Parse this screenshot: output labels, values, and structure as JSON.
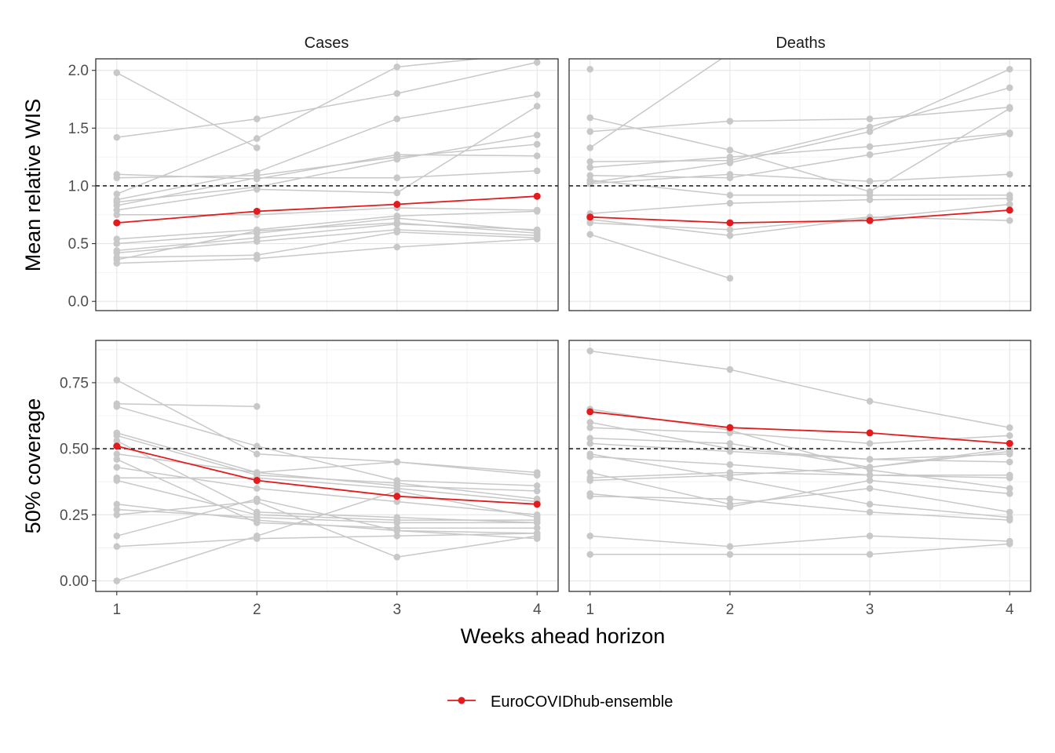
{
  "chart_data": {
    "type": "line",
    "x_label": "Weeks ahead horizon",
    "x_ticks": [
      1,
      2,
      3,
      4
    ],
    "facet_columns": [
      "Cases",
      "Deaths"
    ],
    "rows": [
      {
        "y_label": "Mean relative WIS",
        "ylim": [
          -0.08,
          2.1
        ],
        "y_ticks": [
          "0.0",
          "0.5",
          "1.0",
          "1.5",
          "2.0"
        ],
        "y_tick_values": [
          0,
          0.5,
          1.0,
          1.5,
          2.0
        ],
        "reference_line": 1.0
      },
      {
        "y_label": "50% coverage",
        "ylim": [
          -0.04,
          0.91
        ],
        "y_ticks": [
          "0.00",
          "0.25",
          "0.50",
          "0.75"
        ],
        "y_tick_values": [
          0,
          0.25,
          0.5,
          0.75
        ],
        "reference_line": 0.5
      }
    ],
    "highlight": {
      "name": "EuroCOVIDhub-ensemble",
      "color": "#E41A1C",
      "panels": {
        "wis_cases": [
          0.68,
          0.78,
          0.84,
          0.91
        ],
        "wis_deaths": [
          0.73,
          0.68,
          0.7,
          0.79
        ],
        "cov_cases": [
          0.51,
          0.38,
          0.32,
          0.29
        ],
        "cov_deaths": [
          0.64,
          0.58,
          0.56,
          0.52
        ]
      }
    },
    "other_models_color": "#C8C8C8",
    "other_models": {
      "wis_cases": [
        [
          1.98,
          1.33,
          null,
          null
        ],
        [
          1.42,
          1.58,
          1.8,
          2.07
        ],
        [
          1.1,
          1.06,
          1.27,
          1.26
        ],
        [
          1.07,
          1.09,
          1.25,
          1.36
        ],
        [
          0.93,
          1.41,
          2.03,
          2.15
        ],
        [
          0.88,
          1.12,
          1.58,
          1.79
        ],
        [
          0.86,
          0.99,
          1.23,
          1.44
        ],
        [
          0.83,
          1.07,
          1.07,
          1.13
        ],
        [
          0.79,
          0.97,
          0.94,
          1.69
        ],
        [
          0.75,
          0.75,
          0.81,
          0.79
        ],
        [
          0.54,
          0.62,
          0.74,
          0.78
        ],
        [
          0.5,
          0.59,
          0.72,
          0.61
        ],
        [
          0.44,
          0.55,
          0.67,
          0.62
        ],
        [
          0.42,
          0.52,
          0.62,
          0.57
        ],
        [
          0.38,
          0.4,
          0.6,
          0.55
        ],
        [
          0.36,
          0.61,
          0.68,
          0.59
        ],
        [
          0.33,
          0.37,
          0.47,
          0.54
        ]
      ],
      "wis_deaths": [
        [
          2.01,
          null,
          null,
          null
        ],
        [
          1.33,
          2.15,
          null,
          null
        ],
        [
          1.59,
          1.31,
          0.95,
          1.67
        ],
        [
          1.47,
          1.56,
          1.58,
          1.68
        ],
        [
          1.21,
          1.22,
          1.51,
          1.85
        ],
        [
          1.16,
          1.25,
          1.34,
          1.46
        ],
        [
          1.09,
          1.07,
          1.27,
          1.45
        ],
        [
          1.05,
          0.92,
          0.92,
          0.92
        ],
        [
          1.03,
          1.2,
          1.47,
          2.01
        ],
        [
          1.02,
          1.1,
          1.04,
          1.1
        ],
        [
          0.76,
          0.85,
          0.88,
          0.89
        ],
        [
          0.71,
          0.57,
          0.72,
          0.84
        ],
        [
          0.68,
          0.62,
          0.73,
          0.7
        ],
        [
          0.58,
          0.2,
          null,
          null
        ]
      ],
      "cov_cases": [
        [
          0.76,
          0.48,
          0.45,
          0.4
        ],
        [
          0.67,
          0.66,
          null,
          null
        ],
        [
          0.66,
          0.51,
          0.38,
          0.36
        ],
        [
          0.56,
          0.41,
          0.36,
          0.34
        ],
        [
          0.55,
          0.4,
          0.37,
          0.31
        ],
        [
          0.53,
          0.26,
          0.24,
          0.22
        ],
        [
          0.48,
          0.41,
          0.45,
          0.41
        ],
        [
          0.46,
          0.22,
          0.2,
          0.2
        ],
        [
          0.43,
          0.35,
          0.3,
          0.25
        ],
        [
          0.39,
          0.39,
          0.35,
          0.3
        ],
        [
          0.38,
          0.25,
          0.23,
          0.23
        ],
        [
          0.29,
          0.23,
          0.19,
          0.18
        ],
        [
          0.27,
          0.24,
          0.22,
          0.22
        ],
        [
          0.25,
          0.3,
          0.09,
          0.17
        ],
        [
          0.17,
          0.31,
          0.19,
          0.16
        ],
        [
          0.13,
          0.16,
          0.17,
          0.18
        ],
        [
          0.0,
          0.17,
          0.34,
          0.24
        ]
      ],
      "cov_deaths": [
        [
          0.87,
          0.8,
          0.68,
          0.58
        ],
        [
          0.65,
          0.57,
          0.42,
          0.35
        ],
        [
          0.6,
          0.5,
          0.46,
          0.45
        ],
        [
          0.58,
          0.56,
          0.52,
          0.55
        ],
        [
          0.54,
          0.52,
          0.43,
          0.49
        ],
        [
          0.52,
          0.49,
          0.46,
          0.48
        ],
        [
          0.48,
          0.39,
          0.29,
          0.24
        ],
        [
          0.47,
          0.44,
          0.4,
          0.4
        ],
        [
          0.41,
          0.29,
          0.35,
          0.26
        ],
        [
          0.39,
          0.41,
          0.4,
          0.39
        ],
        [
          0.38,
          0.4,
          0.43,
          0.5
        ],
        [
          0.33,
          0.28,
          0.38,
          0.33
        ],
        [
          0.32,
          0.31,
          0.26,
          0.23
        ],
        [
          0.17,
          0.13,
          0.17,
          0.15
        ],
        [
          0.1,
          0.1,
          0.1,
          0.14
        ]
      ]
    }
  }
}
